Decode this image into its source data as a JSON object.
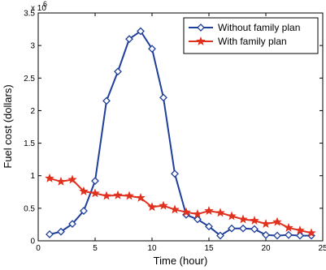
{
  "chart_data": {
    "type": "line",
    "xlabel": "Time (hour)",
    "ylabel": "Fuel cost (dollars)",
    "xlim": [
      0,
      25
    ],
    "ylim": [
      0,
      3500000
    ],
    "xticks": [
      0,
      5,
      10,
      15,
      20,
      25
    ],
    "yticks": [
      0,
      0.5,
      1,
      1.5,
      2,
      2.5,
      3,
      3.5
    ],
    "y_multiplier": "x 10",
    "y_multiplier_exponent": "6",
    "legend_position": "top-right",
    "grid": false,
    "x": [
      1,
      2,
      3,
      4,
      5,
      6,
      7,
      8,
      9,
      10,
      11,
      12,
      13,
      14,
      15,
      16,
      17,
      18,
      19,
      20,
      21,
      22,
      23,
      24
    ],
    "series": [
      {
        "name": "Without family plan",
        "marker": "diamond",
        "color": "#1f3f9a",
        "values": [
          100000,
          140000,
          260000,
          460000,
          920000,
          2150000,
          2600000,
          3100000,
          3220000,
          2950000,
          2200000,
          1030000,
          400000,
          330000,
          220000,
          80000,
          190000,
          190000,
          180000,
          90000,
          80000,
          90000,
          80000,
          80000
        ]
      },
      {
        "name": "With family plan",
        "marker": "star",
        "color": "#e0301e",
        "values": [
          960000,
          910000,
          940000,
          760000,
          730000,
          690000,
          700000,
          690000,
          660000,
          520000,
          540000,
          480000,
          440000,
          410000,
          460000,
          430000,
          380000,
          330000,
          310000,
          260000,
          290000,
          200000,
          160000,
          120000
        ]
      }
    ]
  }
}
